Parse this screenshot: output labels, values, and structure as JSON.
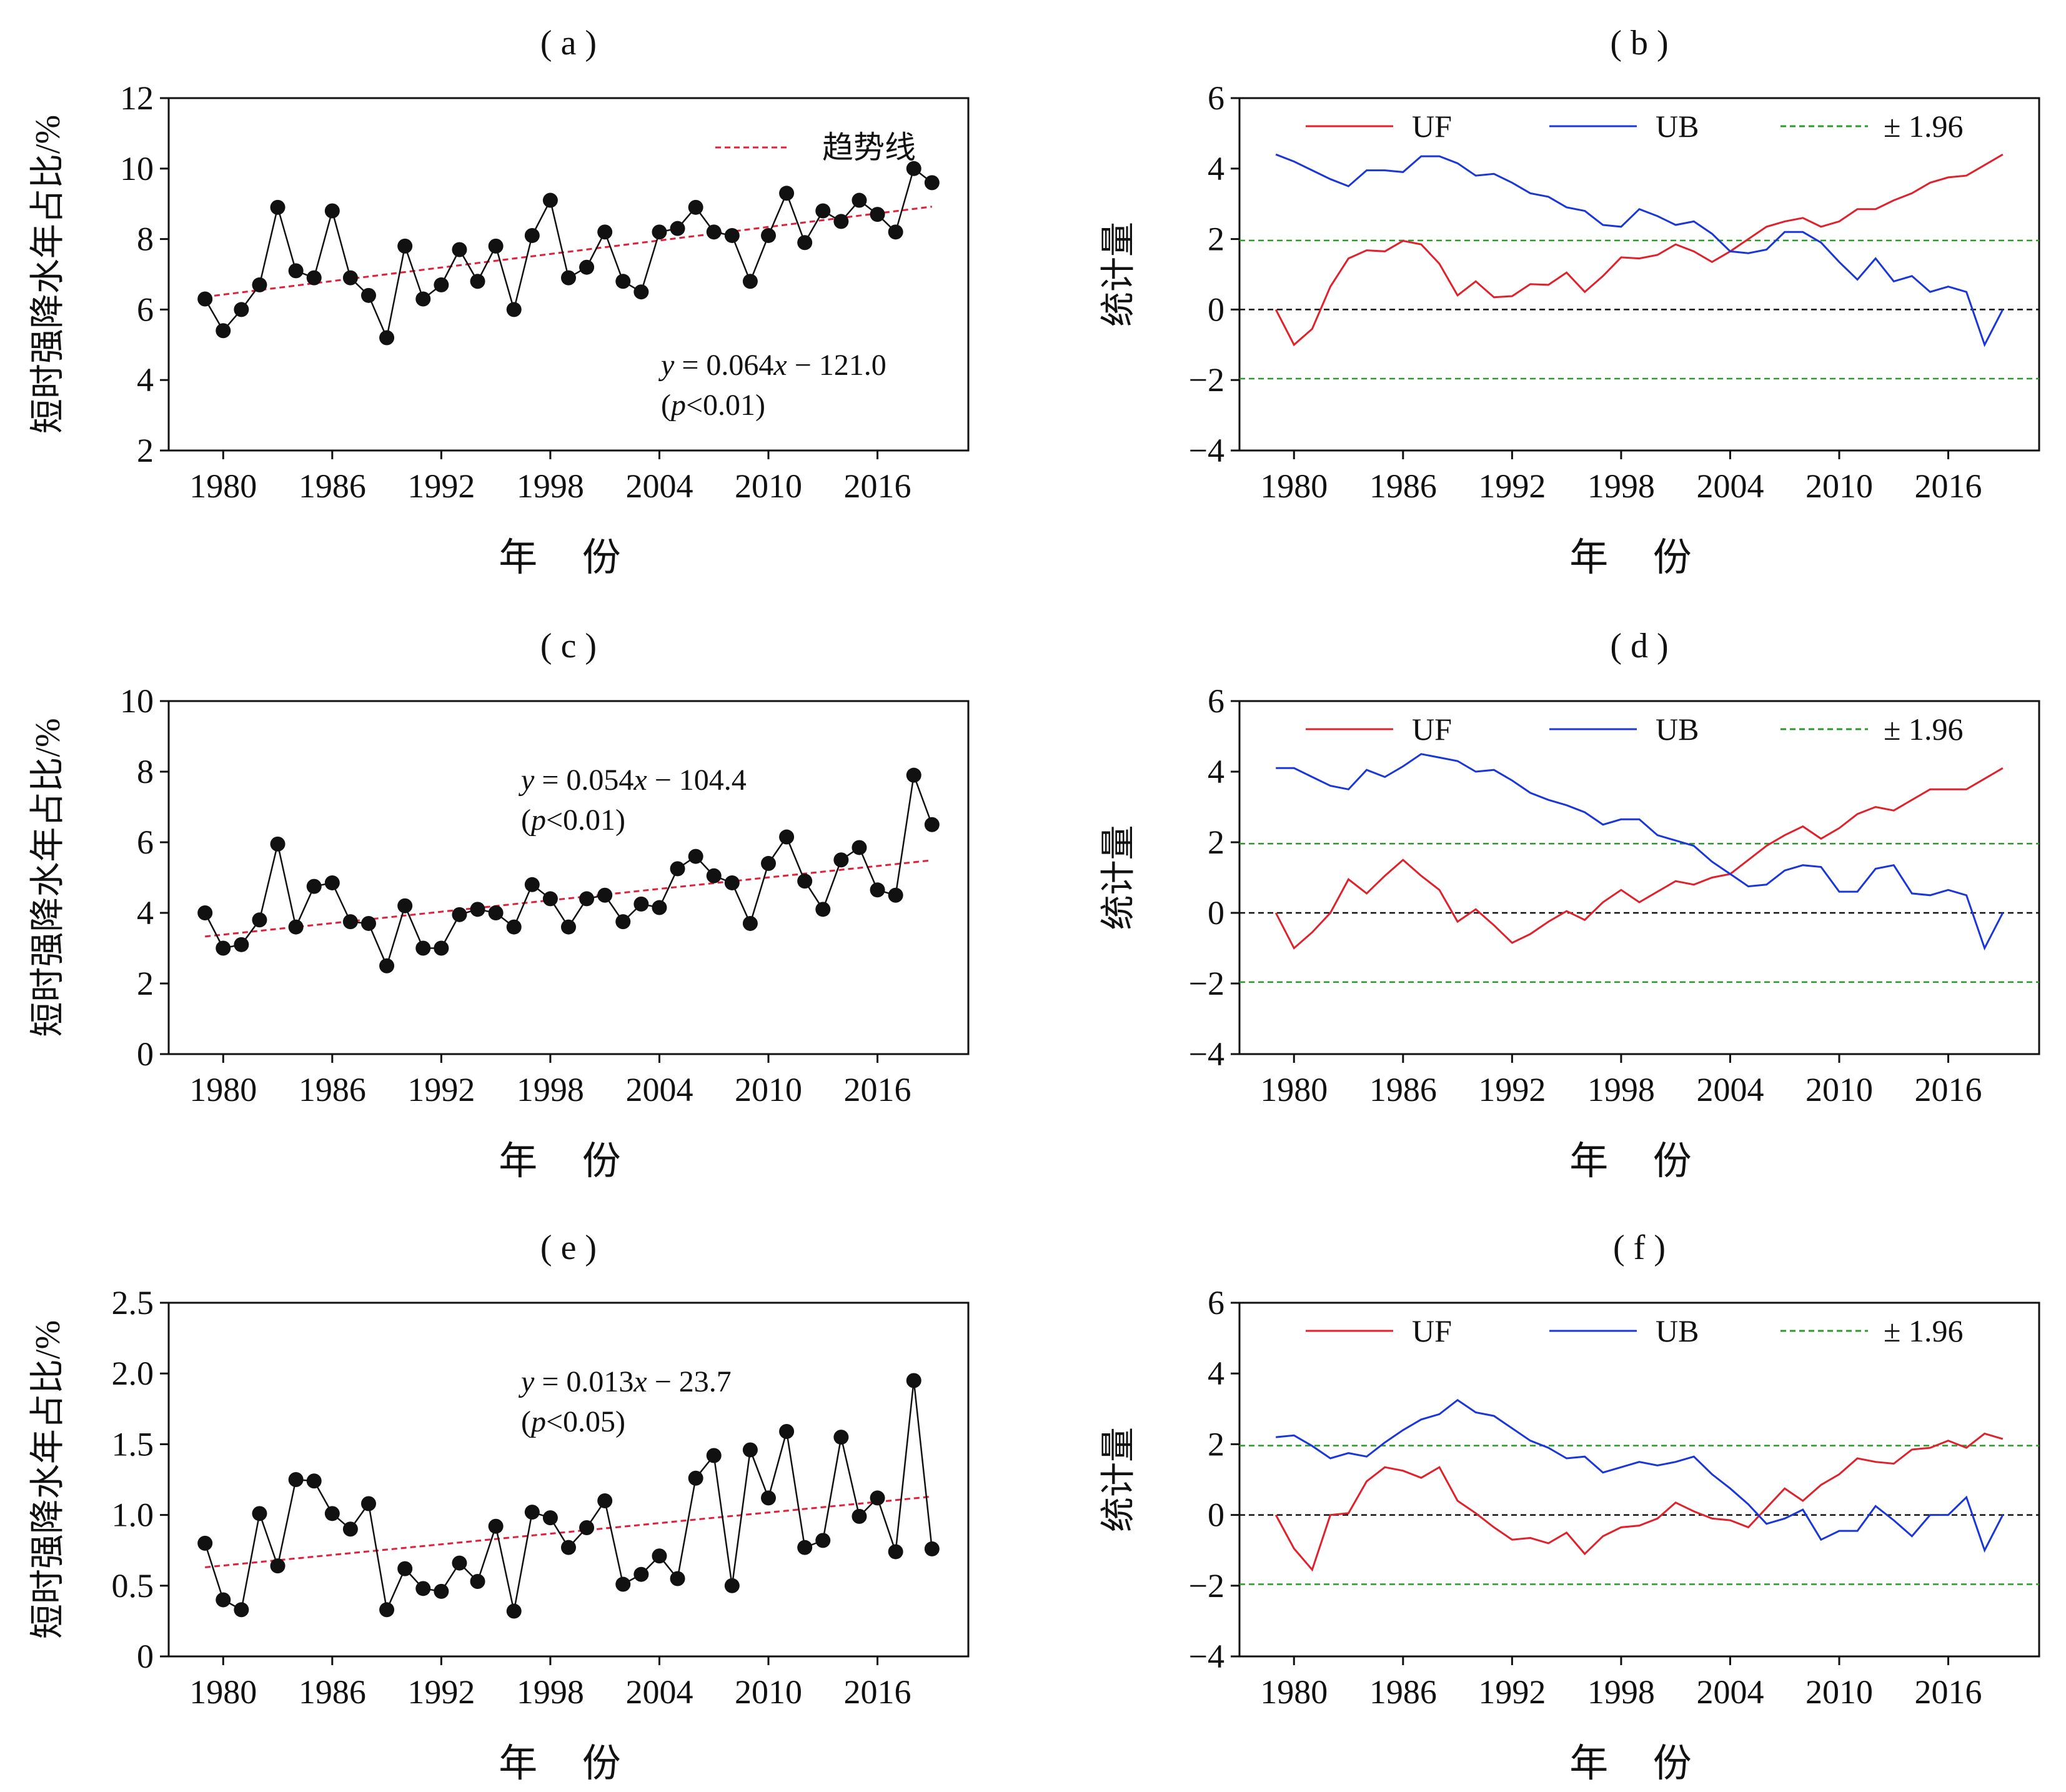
{
  "chart_data": [
    {
      "panel": "(a)",
      "type": "line",
      "xlabel": "年 份",
      "ylabel": "短时强降水年占比/%",
      "ylim": [
        2,
        12
      ],
      "yticks": [
        2,
        4,
        6,
        8,
        10,
        12
      ],
      "xlim": [
        1977,
        2021
      ],
      "xticks": [
        1980,
        1986,
        1992,
        1998,
        2004,
        2010,
        2016
      ],
      "legend": [
        "趋势线"
      ],
      "legend_position": "top-right",
      "equation": "y = 0.064x − 121.0",
      "pvalue": "(p<0.01)",
      "x": [
        1979,
        1980,
        1981,
        1982,
        1983,
        1984,
        1985,
        1986,
        1987,
        1988,
        1989,
        1990,
        1991,
        1992,
        1993,
        1994,
        1995,
        1996,
        1997,
        1998,
        1999,
        2000,
        2001,
        2002,
        2003,
        2004,
        2005,
        2006,
        2007,
        2008,
        2009,
        2010,
        2011,
        2012,
        2013,
        2014,
        2015,
        2016,
        2017,
        2018,
        2019
      ],
      "series": [
        {
          "values": [
            6.3,
            5.4,
            6.0,
            6.7,
            8.9,
            7.1,
            6.9,
            8.8,
            6.9,
            6.4,
            5.2,
            7.8,
            6.3,
            6.7,
            7.7,
            6.8,
            7.8,
            6.0,
            8.1,
            9.1,
            6.9,
            7.2,
            8.2,
            6.8,
            6.5,
            8.2,
            8.3,
            8.9,
            8.2,
            8.1,
            6.8,
            8.1,
            9.3,
            7.9,
            8.8,
            8.5,
            9.1,
            8.7,
            8.2,
            10.0,
            9.6
          ]
        }
      ],
      "trend": {
        "x": [
          1979,
          2019
        ],
        "y": [
          6.36,
          8.92
        ]
      }
    },
    {
      "panel": "(b)",
      "type": "line",
      "ylabel": "统计量",
      "ylim": [
        -4,
        6
      ],
      "yticks": [
        -4,
        -2,
        0,
        2,
        4,
        6
      ],
      "xlim": [
        1977,
        2021
      ],
      "xticks": [
        1980,
        1986,
        1992,
        1998,
        2004,
        2010,
        2016
      ],
      "legend": [
        "UF",
        "UB",
        "± 1.96"
      ],
      "legend_position": "top",
      "x": [
        1979,
        1980,
        1981,
        1982,
        1983,
        1984,
        1985,
        1986,
        1987,
        1988,
        1989,
        1990,
        1991,
        1992,
        1993,
        1994,
        1995,
        1996,
        1997,
        1998,
        1999,
        2000,
        2001,
        2002,
        2003,
        2004,
        2005,
        2006,
        2007,
        2008,
        2009,
        2010,
        2011,
        2012,
        2013,
        2014,
        2015,
        2016,
        2017,
        2018,
        2019
      ],
      "series": [
        {
          "name": "UF",
          "values": [
            0.0,
            -1.0,
            -0.55,
            0.65,
            1.45,
            1.68,
            1.65,
            1.95,
            1.85,
            1.3,
            0.4,
            0.8,
            0.35,
            0.38,
            0.72,
            0.7,
            1.05,
            0.5,
            0.95,
            1.48,
            1.45,
            1.55,
            1.85,
            1.65,
            1.35,
            1.65,
            2.0,
            2.35,
            2.5,
            2.6,
            2.35,
            2.5,
            2.85,
            2.85,
            3.1,
            3.3,
            3.6,
            3.75,
            3.8,
            4.1,
            4.4
          ]
        },
        {
          "name": "UB",
          "values": [
            4.4,
            4.2,
            3.95,
            3.7,
            3.5,
            3.95,
            3.95,
            3.9,
            4.35,
            4.35,
            4.15,
            3.8,
            3.85,
            3.6,
            3.3,
            3.2,
            2.9,
            2.8,
            2.4,
            2.35,
            2.85,
            2.65,
            2.4,
            2.5,
            2.15,
            1.65,
            1.6,
            1.7,
            2.2,
            2.2,
            1.9,
            1.35,
            0.85,
            1.45,
            0.8,
            0.95,
            0.5,
            0.65,
            0.5,
            -1.0,
            0.0
          ]
        }
      ],
      "refs": [
        0,
        1.96,
        -1.96
      ]
    },
    {
      "panel": "(c)",
      "type": "line",
      "xlabel": "年 份",
      "ylabel": "短时强降水年占比/%",
      "ylim": [
        0,
        10
      ],
      "yticks": [
        0,
        2,
        4,
        6,
        8,
        10
      ],
      "xlim": [
        1977,
        2021
      ],
      "xticks": [
        1980,
        1986,
        1992,
        1998,
        2004,
        2010,
        2016
      ],
      "equation": "y = 0.054x − 104.4",
      "pvalue": "(p<0.01)",
      "x": [
        1979,
        1980,
        1981,
        1982,
        1983,
        1984,
        1985,
        1986,
        1987,
        1988,
        1989,
        1990,
        1991,
        1992,
        1993,
        1994,
        1995,
        1996,
        1997,
        1998,
        1999,
        2000,
        2001,
        2002,
        2003,
        2004,
        2005,
        2006,
        2007,
        2008,
        2009,
        2010,
        2011,
        2012,
        2013,
        2014,
        2015,
        2016,
        2017,
        2018,
        2019
      ],
      "series": [
        {
          "values": [
            4.0,
            3.0,
            3.1,
            3.8,
            5.95,
            3.6,
            4.75,
            4.85,
            3.75,
            3.7,
            2.5,
            4.2,
            3.0,
            3.0,
            3.95,
            4.1,
            4.0,
            3.6,
            4.8,
            4.4,
            3.6,
            4.4,
            4.5,
            3.75,
            4.25,
            4.15,
            5.25,
            5.6,
            5.05,
            4.85,
            3.7,
            5.4,
            6.15,
            4.9,
            4.1,
            5.5,
            5.85,
            4.65,
            4.5,
            7.9,
            6.5
          ]
        }
      ],
      "trend": {
        "x": [
          1979,
          2019
        ],
        "y": [
          3.33,
          5.49
        ]
      }
    },
    {
      "panel": "(d)",
      "type": "line",
      "ylabel": "统计量",
      "ylim": [
        -4,
        6
      ],
      "yticks": [
        -4,
        -2,
        0,
        2,
        4,
        6
      ],
      "xlim": [
        1977,
        2021
      ],
      "xticks": [
        1980,
        1986,
        1992,
        1998,
        2004,
        2010,
        2016
      ],
      "legend": [
        "UF",
        "UB",
        "± 1.96"
      ],
      "legend_position": "top",
      "x": [
        1979,
        1980,
        1981,
        1982,
        1983,
        1984,
        1985,
        1986,
        1987,
        1988,
        1989,
        1990,
        1991,
        1992,
        1993,
        1994,
        1995,
        1996,
        1997,
        1998,
        1999,
        2000,
        2001,
        2002,
        2003,
        2004,
        2005,
        2006,
        2007,
        2008,
        2009,
        2010,
        2011,
        2012,
        2013,
        2014,
        2015,
        2016,
        2017,
        2018,
        2019
      ],
      "series": [
        {
          "name": "UF",
          "values": [
            0.0,
            -1.0,
            -0.55,
            0.0,
            0.95,
            0.55,
            1.05,
            1.5,
            1.05,
            0.65,
            -0.25,
            0.1,
            -0.35,
            -0.85,
            -0.6,
            -0.25,
            0.05,
            -0.2,
            0.3,
            0.65,
            0.3,
            0.6,
            0.9,
            0.8,
            1.0,
            1.1,
            1.5,
            1.9,
            2.2,
            2.45,
            2.1,
            2.4,
            2.8,
            3.0,
            2.9,
            3.2,
            3.5,
            3.5,
            3.5,
            3.8,
            4.1
          ]
        },
        {
          "name": "UB",
          "values": [
            4.1,
            4.1,
            3.85,
            3.6,
            3.5,
            4.05,
            3.85,
            4.15,
            4.5,
            4.4,
            4.3,
            4.0,
            4.05,
            3.75,
            3.4,
            3.2,
            3.05,
            2.85,
            2.5,
            2.65,
            2.65,
            2.2,
            2.05,
            1.9,
            1.45,
            1.1,
            0.75,
            0.8,
            1.2,
            1.35,
            1.3,
            0.6,
            0.6,
            1.25,
            1.35,
            0.55,
            0.5,
            0.65,
            0.5,
            -1.0,
            0.0
          ]
        }
      ],
      "refs": [
        0,
        1.96,
        -1.96
      ]
    },
    {
      "panel": "(e)",
      "type": "line",
      "xlabel": "年 份",
      "ylabel": "短时强降水年占比/%",
      "ylim": [
        0,
        2.5
      ],
      "yticks": [
        0,
        0.5,
        1.0,
        1.5,
        2.0,
        2.5
      ],
      "ytick_labels": [
        "0",
        "0.5",
        "1.0",
        "1.5",
        "2.0",
        "2.5"
      ],
      "xlim": [
        1977,
        2021
      ],
      "xticks": [
        1980,
        1986,
        1992,
        1998,
        2004,
        2010,
        2016
      ],
      "equation": "y = 0.013x − 23.7",
      "pvalue": "(p<0.05)",
      "x": [
        1979,
        1980,
        1981,
        1982,
        1983,
        1984,
        1985,
        1986,
        1987,
        1988,
        1989,
        1990,
        1991,
        1992,
        1993,
        1994,
        1995,
        1996,
        1997,
        1998,
        1999,
        2000,
        2001,
        2002,
        2003,
        2004,
        2005,
        2006,
        2007,
        2008,
        2009,
        2010,
        2011,
        2012,
        2013,
        2014,
        2015,
        2016,
        2017,
        2018,
        2019
      ],
      "series": [
        {
          "values": [
            0.8,
            0.4,
            0.33,
            1.01,
            0.64,
            1.25,
            1.24,
            1.01,
            0.9,
            1.08,
            0.33,
            0.62,
            0.48,
            0.46,
            0.66,
            0.53,
            0.92,
            0.32,
            1.02,
            0.98,
            0.77,
            0.91,
            1.1,
            0.51,
            0.58,
            0.71,
            0.55,
            1.26,
            1.42,
            0.5,
            1.46,
            1.12,
            1.59,
            0.77,
            0.82,
            1.55,
            0.99,
            1.12,
            0.74,
            1.95,
            0.76
          ]
        }
      ],
      "trend": {
        "x": [
          1979,
          2019
        ],
        "y": [
          0.63,
          1.13
        ]
      }
    },
    {
      "panel": "(f)",
      "type": "line",
      "ylabel": "统计量",
      "ylim": [
        -4,
        6
      ],
      "yticks": [
        -4,
        -2,
        0,
        2,
        4,
        6
      ],
      "xlim": [
        1977,
        2021
      ],
      "xticks": [
        1980,
        1986,
        1992,
        1998,
        2004,
        2010,
        2016
      ],
      "legend": [
        "UF",
        "UB",
        "± 1.96"
      ],
      "legend_position": "top",
      "x": [
        1979,
        1980,
        1981,
        1982,
        1983,
        1984,
        1985,
        1986,
        1987,
        1988,
        1989,
        1990,
        1991,
        1992,
        1993,
        1994,
        1995,
        1996,
        1997,
        1998,
        1999,
        2000,
        2001,
        2002,
        2003,
        2004,
        2005,
        2006,
        2007,
        2008,
        2009,
        2010,
        2011,
        2012,
        2013,
        2014,
        2015,
        2016,
        2017,
        2018,
        2019
      ],
      "series": [
        {
          "name": "UF",
          "values": [
            0.0,
            -0.95,
            -1.55,
            0.0,
            0.05,
            0.95,
            1.35,
            1.25,
            1.05,
            1.35,
            0.4,
            0.05,
            -0.35,
            -0.7,
            -0.65,
            -0.8,
            -0.5,
            -1.1,
            -0.6,
            -0.35,
            -0.3,
            -0.1,
            0.35,
            0.1,
            -0.1,
            -0.15,
            -0.35,
            0.2,
            0.75,
            0.4,
            0.85,
            1.15,
            1.6,
            1.5,
            1.45,
            1.85,
            1.9,
            2.1,
            1.9,
            2.3,
            2.15
          ]
        },
        {
          "name": "UB",
          "values": [
            2.2,
            2.25,
            1.95,
            1.6,
            1.75,
            1.65,
            2.05,
            2.4,
            2.7,
            2.85,
            3.25,
            2.9,
            2.8,
            2.45,
            2.1,
            1.9,
            1.6,
            1.65,
            1.2,
            1.35,
            1.5,
            1.4,
            1.5,
            1.65,
            1.15,
            0.75,
            0.3,
            -0.25,
            -0.1,
            0.15,
            -0.7,
            -0.45,
            -0.45,
            0.25,
            -0.15,
            -0.6,
            0.0,
            0.0,
            0.5,
            -1.0,
            0.0
          ]
        }
      ],
      "refs": [
        0,
        1.96,
        -1.96
      ]
    }
  ]
}
